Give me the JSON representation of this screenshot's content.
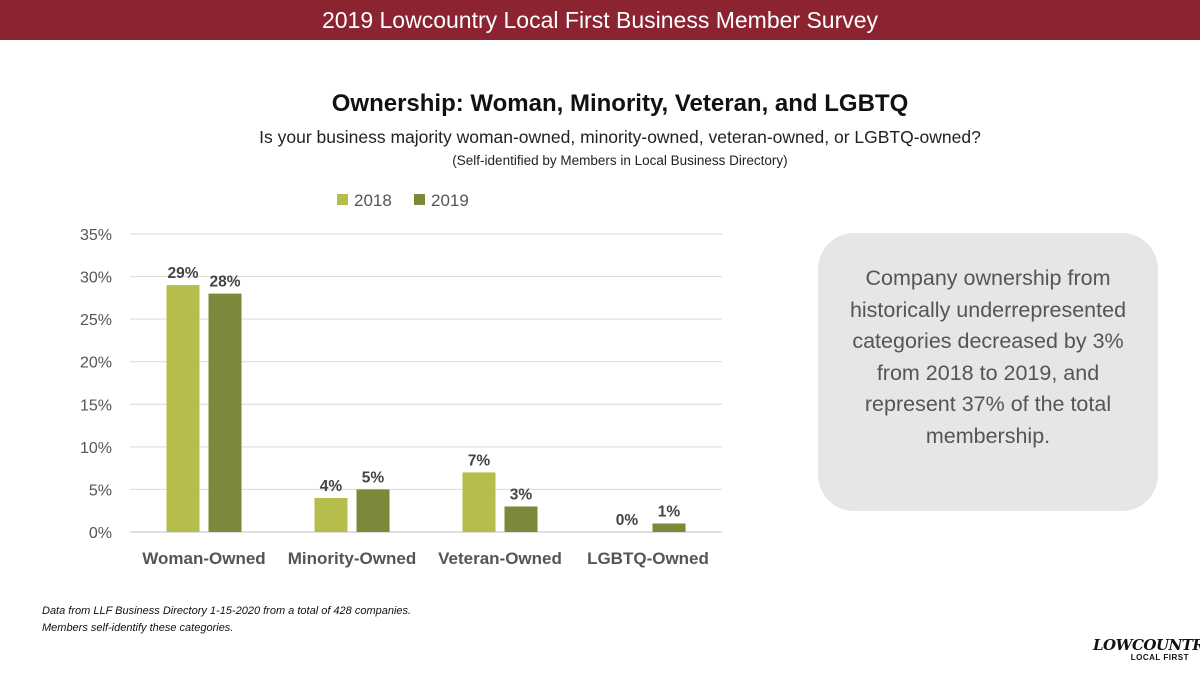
{
  "banner": {
    "title": "2019 Lowcountry Local First Business Member Survey"
  },
  "heading": {
    "title": "Ownership: Woman, Minority, Veteran, and LGBTQ",
    "subtitle": "Is your business majority woman-owned, minority-owned, veteran-owned, or LGBTQ-owned?",
    "note": "(Self-identified by Members in Local Business Directory)"
  },
  "chart_data": {
    "type": "bar",
    "categories": [
      "Woman-Owned",
      "Minority-Owned",
      "Veteran-Owned",
      "LGBTQ-Owned"
    ],
    "series": [
      {
        "name": "2018",
        "values": [
          29,
          4,
          7,
          0
        ],
        "color": "#b6bd4a"
      },
      {
        "name": "2019",
        "values": [
          28,
          5,
          3,
          1
        ],
        "color": "#7a8a3a"
      }
    ],
    "data_labels": [
      [
        "29%",
        "4%",
        "7%",
        "0%"
      ],
      [
        "28%",
        "5%",
        "3%",
        "1%"
      ]
    ],
    "yticks": [
      "0%",
      "5%",
      "10%",
      "15%",
      "20%",
      "25%",
      "30%",
      "35%"
    ],
    "ylim": [
      0,
      35
    ],
    "grid": true,
    "legend_position": "top"
  },
  "callout": {
    "text": "Company ownership from historically underrepresented categories decreased by 3% from 2018 to 2019, and represent 37% of the total membership."
  },
  "footnote": {
    "line1": "Data from LLF Business Directory 1-15-2020 from a total of 428 companies.",
    "line2": "Members self-identify these categories."
  },
  "logo": {
    "main": "LOWCOUNTRY",
    "sub": "LOCAL FIRST"
  }
}
